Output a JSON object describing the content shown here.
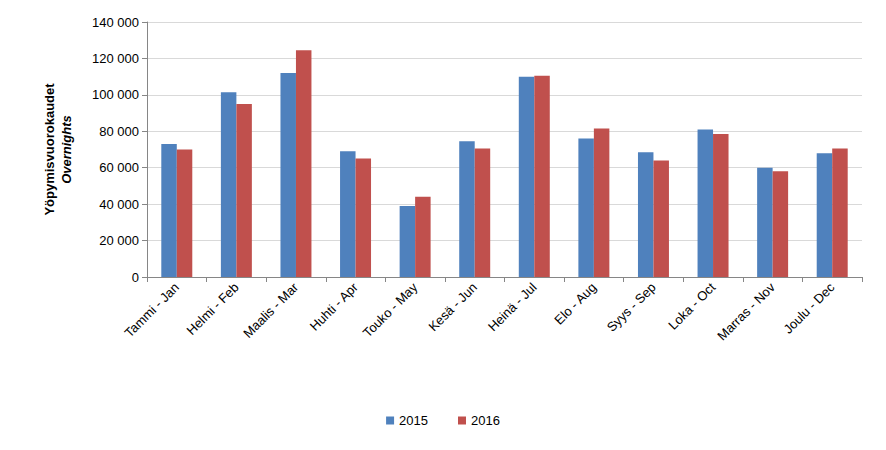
{
  "chart_data": {
    "type": "bar",
    "ylabel": "Yöpymisvuorokaudet",
    "ylabel_en": "Overnights",
    "categories": [
      "Tammi - Jan",
      "Helmi - Feb",
      "Maalis - Mar",
      "Huhti - Apr",
      "Touko - May",
      "Kesä - Jun",
      "Heinä - Jul",
      "Elo - Aug",
      "Syys - Sep",
      "Loka - Oct",
      "Marras - Nov",
      "Joulu - Dec"
    ],
    "series": [
      {
        "name": "2015",
        "color": "#4f81bd",
        "values": [
          73000,
          101500,
          112000,
          69000,
          39000,
          74500,
          110000,
          76000,
          68500,
          81000,
          60000,
          68000
        ]
      },
      {
        "name": "2016",
        "color": "#c0504d",
        "values": [
          70000,
          95000,
          124500,
          65000,
          44000,
          70500,
          110500,
          81500,
          64000,
          78500,
          58000,
          70500
        ]
      }
    ],
    "ylim": [
      0,
      140000
    ],
    "yticks": [
      0,
      {
        "value": 20000,
        "label": "20 000"
      },
      {
        "value": 40000,
        "label": "40 000"
      },
      {
        "value": 60000,
        "label": "60 000"
      },
      {
        "value": 80000,
        "label": "80 000"
      },
      {
        "value": 100000,
        "label": "100 000"
      },
      {
        "value": 120000,
        "label": "120 000"
      },
      {
        "value": 140000,
        "label": "140 000"
      }
    ],
    "grid": true,
    "legend": "bottom"
  }
}
